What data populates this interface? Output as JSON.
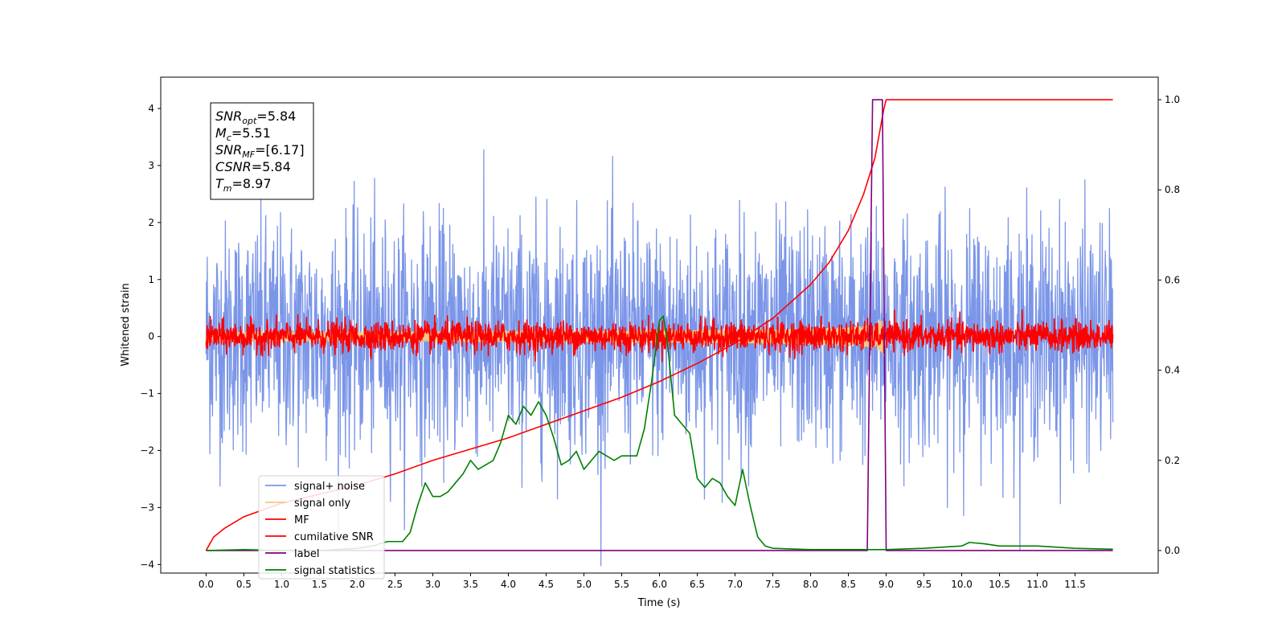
{
  "chart_data": {
    "type": "line",
    "xlabel": "Time (s)",
    "ylabel": "Whitened strain",
    "xlim": [
      -0.6,
      12.6
    ],
    "ylim": [
      -4.15,
      4.55
    ],
    "ylim_right": [
      -0.05,
      1.05
    ],
    "xticks": [
      "0.0",
      "0.5",
      "1.0",
      "1.5",
      "2.0",
      "2.5",
      "3.0",
      "3.5",
      "4.0",
      "4.5",
      "5.0",
      "5.5",
      "6.0",
      "6.5",
      "7.0",
      "7.5",
      "8.0",
      "8.5",
      "9.0",
      "9.5",
      "10.0",
      "10.5",
      "11.0",
      "11.5"
    ],
    "xtick_values": [
      0.0,
      0.5,
      1.0,
      1.5,
      2.0,
      2.5,
      3.0,
      3.5,
      4.0,
      4.5,
      5.0,
      5.5,
      6.0,
      6.5,
      7.0,
      7.5,
      8.0,
      8.5,
      9.0,
      9.5,
      10.0,
      10.5,
      11.0,
      11.5
    ],
    "yticks_left": [
      -4,
      -3,
      -2,
      -1,
      0,
      1,
      2,
      3,
      4
    ],
    "yticks_left_labels": [
      "−4",
      "−3",
      "−2",
      "−1",
      "0",
      "1",
      "2",
      "3",
      "4"
    ],
    "yticks_right": [
      0.0,
      0.2,
      0.4,
      0.6,
      0.8,
      1.0
    ],
    "yticks_right_labels": [
      "0.0",
      "0.2",
      "0.4",
      "0.6",
      "0.8",
      "1.0"
    ],
    "legend_placement": "lower-left",
    "grid": false,
    "annotation": {
      "lines": [
        {
          "base": "SNR",
          "sub": "opt",
          "rest": "=5.84"
        },
        {
          "base": "M",
          "sub": "c",
          "rest": "=5.51"
        },
        {
          "base": "SNR",
          "sub": "MF",
          "rest": "=[6.17]"
        },
        {
          "base": "CSNR",
          "sub": "",
          "rest": "=5.84"
        },
        {
          "base": "T",
          "sub": "m",
          "rest": "=8.97"
        }
      ]
    },
    "series": [
      {
        "name": "signal+ noise",
        "color": "#7b96e8",
        "axis": "left",
        "style": "noise",
        "x_range": [
          0,
          12.0
        ],
        "std": 1.0
      },
      {
        "name": "signal only",
        "color": "#f5c97a",
        "axis": "left",
        "style": "chirp",
        "x_range": [
          0,
          9.0
        ],
        "peak_time": 8.97,
        "amplitude": 0.35
      },
      {
        "name": "MF",
        "color": "#ff0000",
        "axis": "left",
        "style": "noise",
        "x_range": [
          0,
          12.0
        ],
        "std": 0.13
      },
      {
        "name": "cumilative SNR",
        "color": "#ff0000",
        "axis": "right",
        "x": [
          0.0,
          0.1,
          0.25,
          0.5,
          1.0,
          1.5,
          2.0,
          2.5,
          3.0,
          3.5,
          4.0,
          4.5,
          5.0,
          5.5,
          6.0,
          6.5,
          7.0,
          7.5,
          8.0,
          8.25,
          8.5,
          8.7,
          8.85,
          8.97,
          9.0,
          12.0
        ],
        "y": [
          0.0,
          0.03,
          0.05,
          0.075,
          0.105,
          0.125,
          0.145,
          0.17,
          0.2,
          0.225,
          0.25,
          0.28,
          0.31,
          0.34,
          0.375,
          0.415,
          0.46,
          0.515,
          0.59,
          0.64,
          0.71,
          0.79,
          0.87,
          0.98,
          1.0,
          1.0
        ]
      },
      {
        "name": "label",
        "color": "#800080",
        "axis": "right",
        "x": [
          0.0,
          8.75,
          8.82,
          8.95,
          9.0,
          12.0
        ],
        "y": [
          0.0,
          0.0,
          1.0,
          1.0,
          0.0,
          0.0
        ]
      },
      {
        "name": "signal statistics",
        "color": "#008000",
        "axis": "right",
        "x": [
          0.0,
          0.5,
          1.0,
          1.5,
          2.0,
          2.2,
          2.4,
          2.6,
          2.7,
          2.8,
          2.9,
          3.0,
          3.1,
          3.2,
          3.3,
          3.4,
          3.5,
          3.6,
          3.7,
          3.8,
          3.9,
          4.0,
          4.1,
          4.2,
          4.3,
          4.4,
          4.5,
          4.6,
          4.7,
          4.8,
          4.9,
          5.0,
          5.1,
          5.2,
          5.3,
          5.4,
          5.5,
          5.6,
          5.7,
          5.8,
          5.9,
          6.0,
          6.05,
          6.1,
          6.2,
          6.3,
          6.4,
          6.5,
          6.6,
          6.7,
          6.8,
          6.9,
          7.0,
          7.1,
          7.2,
          7.3,
          7.4,
          7.5,
          8.0,
          8.5,
          9.0,
          9.5,
          9.8,
          10.0,
          10.1,
          10.3,
          10.5,
          11.0,
          11.2,
          11.5,
          12.0
        ],
        "y": [
          0.0,
          0.002,
          0.0,
          0.0,
          0.005,
          0.01,
          0.02,
          0.02,
          0.04,
          0.1,
          0.15,
          0.12,
          0.12,
          0.13,
          0.15,
          0.17,
          0.2,
          0.18,
          0.19,
          0.2,
          0.24,
          0.3,
          0.28,
          0.32,
          0.3,
          0.33,
          0.3,
          0.25,
          0.19,
          0.2,
          0.22,
          0.18,
          0.2,
          0.22,
          0.21,
          0.2,
          0.21,
          0.21,
          0.21,
          0.27,
          0.38,
          0.51,
          0.52,
          0.47,
          0.3,
          0.28,
          0.26,
          0.16,
          0.14,
          0.16,
          0.15,
          0.12,
          0.1,
          0.18,
          0.1,
          0.03,
          0.01,
          0.005,
          0.002,
          0.002,
          0.002,
          0.005,
          0.008,
          0.01,
          0.018,
          0.015,
          0.01,
          0.01,
          0.008,
          0.005,
          0.003
        ]
      }
    ]
  }
}
